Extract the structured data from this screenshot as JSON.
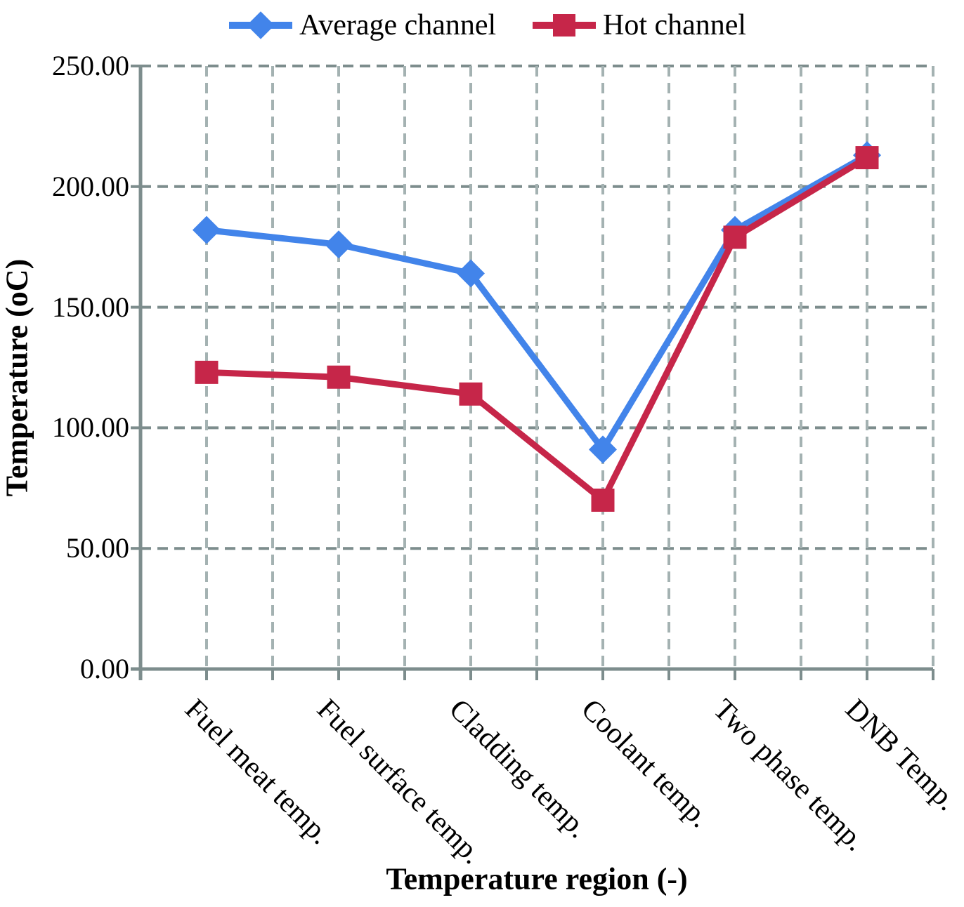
{
  "legend": {
    "items": [
      {
        "label": "Average channel",
        "color": "#4284EA",
        "marker": "diamond"
      },
      {
        "label": "Hot channel",
        "color": "#C62649",
        "marker": "square"
      }
    ]
  },
  "axes": {
    "y_title": "Temperature (oC)",
    "x_title": "Temperature region (-)"
  },
  "colors": {
    "axis": "#7D8D8D",
    "h_gridline": "#7D8D8D",
    "v_gridline": "#A4B2B2",
    "series_average": "#4284EA",
    "series_hot": "#C62649"
  },
  "chart_data": {
    "type": "line",
    "title": "",
    "xlabel": "Temperature region (-)",
    "ylabel": "Temperature (oC)",
    "categories": [
      "Fuel meat temp.",
      "Fuel surface temp.",
      "Cladding temp.",
      "Coolant temp.",
      "Two phase temp.",
      "DNB Temp."
    ],
    "series": [
      {
        "name": "Average channel",
        "color": "#4284EA",
        "marker": "diamond",
        "values": [
          182,
          176,
          164,
          91,
          182,
          213
        ]
      },
      {
        "name": "Hot channel",
        "color": "#C62649",
        "marker": "square",
        "values": [
          123,
          121,
          114,
          70,
          179,
          212
        ]
      }
    ],
    "ylim": [
      0,
      250
    ],
    "ytick_step": 50,
    "ytick_labels": [
      "0.00",
      "50.00",
      "100.00",
      "150.00",
      "200.00",
      "250.00"
    ],
    "grid": true,
    "legend_position": "top"
  }
}
